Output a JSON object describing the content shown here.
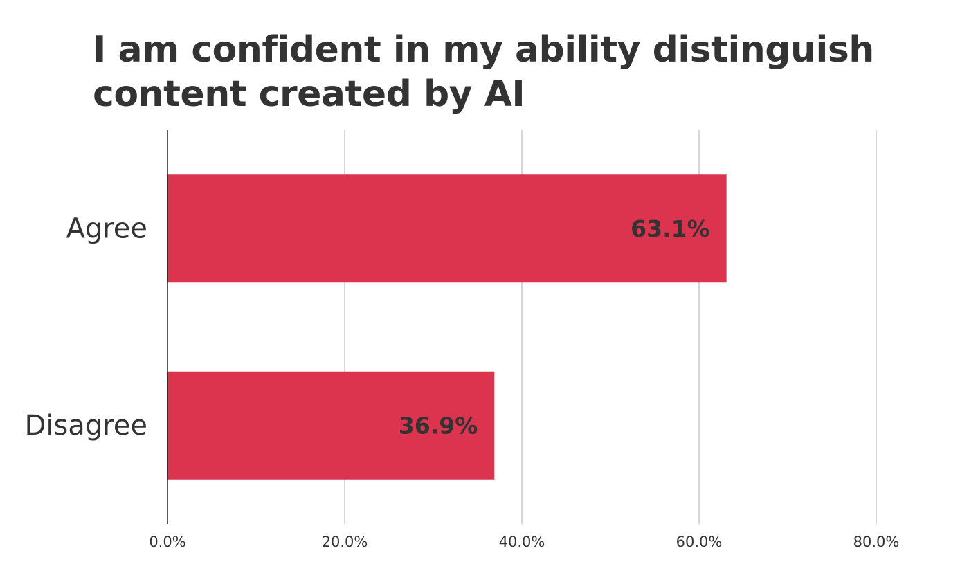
{
  "chart_data": {
    "type": "bar",
    "orientation": "horizontal",
    "title": "I am confident in my ability distinguish content created by AI",
    "categories": [
      "Agree",
      "Disagree"
    ],
    "values": [
      63.1,
      36.9
    ],
    "data_labels": [
      "63.1%",
      "36.9%"
    ],
    "xlim": [
      0,
      80
    ],
    "x_ticks": [
      0,
      20,
      40,
      60,
      80
    ],
    "x_tick_labels": [
      "0.0%",
      "20.0%",
      "40.0%",
      "60.0%",
      "80.0%"
    ],
    "xlabel": "",
    "ylabel": "",
    "grid": "vertical",
    "legend": "none",
    "bar_color": "#DC334F",
    "grid_color": "#BBBBBB",
    "axis_color": "#222222"
  }
}
